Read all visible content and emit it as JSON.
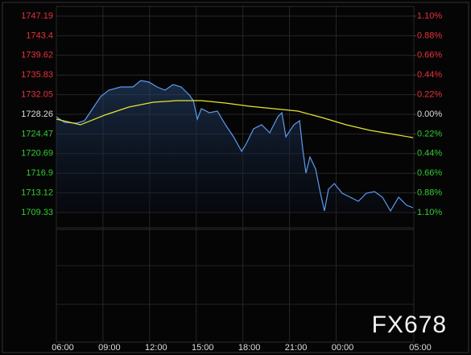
{
  "chart_data": {
    "type": "line",
    "watermark": "FX678",
    "up_color": "#e8313d",
    "flat_color": "#dddddd",
    "down_color": "#33cc33",
    "base": 1728.26,
    "xlim": [
      6,
      29
    ],
    "xticks": [
      {
        "value": 6,
        "label": "06:00"
      },
      {
        "value": 9,
        "label": "09:00"
      },
      {
        "value": 12,
        "label": "12:00"
      },
      {
        "value": 15,
        "label": "15:00"
      },
      {
        "value": 18,
        "label": "18:00"
      },
      {
        "value": 21,
        "label": "21:00"
      },
      {
        "value": 24,
        "label": "00:00"
      },
      {
        "value": 29,
        "label": "05:00"
      }
    ],
    "ylim": [
      1709.33,
      1747.19
    ],
    "yticks": [
      1747.19,
      1743.4,
      1739.62,
      1735.83,
      1732.05,
      1728.26,
      1724.47,
      1720.69,
      1716.9,
      1713.12,
      1709.33
    ],
    "y2lim": [
      -1.1,
      1.1
    ],
    "y2ticks": [
      {
        "value": 1.1,
        "label": "1.10%"
      },
      {
        "value": 0.88,
        "label": "0.88%"
      },
      {
        "value": 0.66,
        "label": "0.66%"
      },
      {
        "value": 0.44,
        "label": "0.44%"
      },
      {
        "value": 0.22,
        "label": "0.22%"
      },
      {
        "value": 0,
        "label": "0.00%"
      },
      {
        "value": -0.22,
        "label": "0.22%"
      },
      {
        "value": -0.44,
        "label": "0.44%"
      },
      {
        "value": -0.66,
        "label": "0.66%"
      },
      {
        "value": -0.88,
        "label": "0.88%"
      },
      {
        "value": -1.1,
        "label": "1.10%"
      }
    ],
    "grid": true,
    "series": [
      {
        "name": "Price",
        "color": "#5b9bf0",
        "fill": true,
        "x": [
          6.0,
          6.52,
          7.3,
          7.81,
          8.33,
          8.85,
          9.37,
          10.15,
          10.92,
          11.44,
          11.96,
          12.48,
          12.99,
          13.51,
          14.03,
          14.55,
          14.81,
          15.07,
          15.33,
          15.84,
          16.36,
          16.88,
          17.4,
          17.92,
          18.18,
          18.69,
          19.21,
          19.73,
          20.25,
          20.51,
          20.77,
          21.28,
          21.65,
          21.85,
          22.06,
          22.32,
          22.68,
          22.99,
          23.25,
          23.51,
          23.88,
          24.39,
          24.91,
          25.43,
          25.95,
          26.47,
          26.98,
          27.5,
          28.02,
          28.54,
          28.95
        ],
        "values": [
          1727.79,
          1726.71,
          1726.55,
          1727.02,
          1729.35,
          1731.67,
          1732.92,
          1733.54,
          1733.54,
          1734.78,
          1734.47,
          1733.54,
          1732.92,
          1734.0,
          1733.54,
          1731.98,
          1730.9,
          1727.33,
          1729.35,
          1728.57,
          1728.88,
          1726.24,
          1723.92,
          1721.12,
          1722.36,
          1725.47,
          1726.24,
          1724.69,
          1727.79,
          1728.57,
          1723.92,
          1726.24,
          1727.02,
          1721.59,
          1716.93,
          1720.04,
          1717.71,
          1713.05,
          1709.64,
          1713.83,
          1714.92,
          1713.05,
          1712.28,
          1711.5,
          1713.05,
          1713.37,
          1712.28,
          1709.64,
          1712.28,
          1710.73,
          1710.26
        ]
      },
      {
        "name": "Average",
        "color": "#e6e632",
        "fill": false,
        "x": [
          6.0,
          7.55,
          9.11,
          10.66,
          12.22,
          13.77,
          15.32,
          16.88,
          18.43,
          19.98,
          21.54,
          23.09,
          24.65,
          26.2,
          27.75,
          28.95
        ],
        "values": [
          1727.33,
          1726.24,
          1728.1,
          1729.66,
          1730.59,
          1730.9,
          1730.9,
          1730.43,
          1729.81,
          1729.35,
          1728.88,
          1727.64,
          1726.24,
          1725.16,
          1724.38,
          1723.76
        ]
      }
    ]
  }
}
